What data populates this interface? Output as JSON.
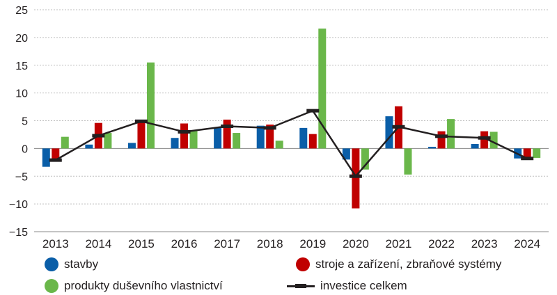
{
  "chart_data": {
    "type": "bar",
    "title": "",
    "xlabel": "",
    "ylabel": "",
    "ylim": [
      -15,
      25
    ],
    "yticks": [
      -15,
      -10,
      -5,
      0,
      5,
      10,
      15,
      20,
      25
    ],
    "grid": true,
    "legend_position": "bottom",
    "categories": [
      "2013",
      "2014",
      "2015",
      "2016",
      "2017",
      "2018",
      "2019",
      "2020",
      "2021",
      "2022",
      "2023",
      "2024"
    ],
    "series": [
      {
        "name": "stavby",
        "type": "bar",
        "color": "#0a5ea8",
        "values": [
          -3.3,
          0.7,
          1.0,
          1.9,
          3.7,
          4.1,
          3.7,
          -2.0,
          5.8,
          0.3,
          0.8,
          -1.8
        ]
      },
      {
        "name": "stroje a zařízení, zbraňové systémy",
        "type": "bar",
        "color": "#c00000",
        "values": [
          -2.0,
          4.6,
          5.1,
          4.5,
          5.2,
          4.3,
          2.6,
          -10.8,
          7.6,
          3.1,
          3.1,
          -1.7
        ]
      },
      {
        "name": "produkty duševního vlastnictví",
        "type": "bar",
        "color": "#6ab74a",
        "values": [
          2.1,
          2.8,
          15.5,
          3.3,
          2.8,
          1.4,
          21.6,
          -3.8,
          -4.7,
          5.3,
          3.0,
          -1.7
        ]
      },
      {
        "name": "investice celkem",
        "type": "line",
        "color": "#231f20",
        "values": [
          -2.1,
          2.3,
          4.9,
          3.0,
          4.0,
          3.7,
          6.8,
          -5.0,
          3.9,
          2.2,
          1.9,
          -1.8
        ]
      }
    ]
  }
}
